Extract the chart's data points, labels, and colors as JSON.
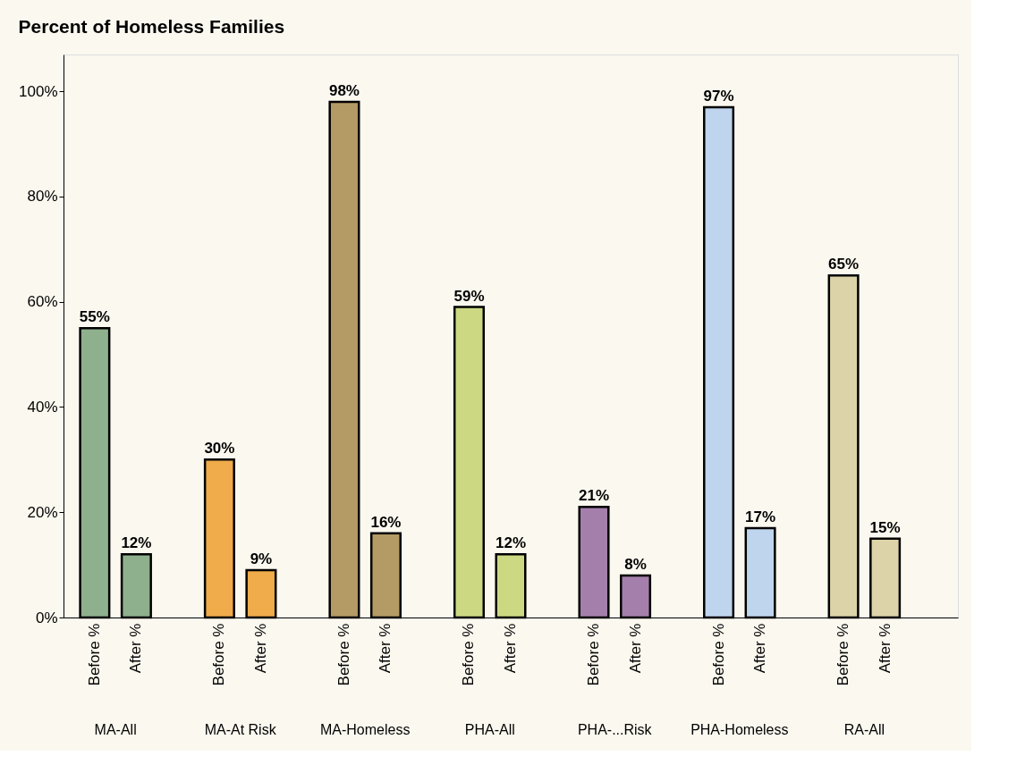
{
  "chart_data": {
    "type": "bar",
    "title": "Percent of Homeless Families",
    "categories": [
      "Before %",
      "After %",
      "Before %",
      "After %",
      "Before %",
      "After %",
      "Before %",
      "After %",
      "Before %",
      "After %",
      "Before %",
      "After %",
      "Before %",
      "After %"
    ],
    "values": [
      55,
      12,
      30,
      9,
      98,
      16,
      59,
      12,
      21,
      8,
      97,
      17,
      65,
      15
    ],
    "colors": [
      "#8fb08c",
      "#8fb08c",
      "#f0ab4a",
      "#f0ab4a",
      "#b49a64",
      "#b49a64",
      "#ccd982",
      "#ccd982",
      "#a57fab",
      "#a57fab",
      "#bfd5ee",
      "#bfd5ee",
      "#dcd3a9",
      "#dcd3a9"
    ],
    "value_labels": [
      "55%",
      "12%",
      "30%",
      "9%",
      "98%",
      "16%",
      "59%",
      "12%",
      "21%",
      "8%",
      "97%",
      "17%",
      "65%",
      "15%"
    ],
    "annotations": [
      "MA-All",
      "MA-At Risk",
      "MA-Homeless",
      "PHA-All",
      "PHA-...Risk",
      "PHA-Homeless",
      "RA-All"
    ],
    "ylim": [
      0,
      107
    ],
    "yticks": [
      {
        "value": 0,
        "label": "0%"
      },
      {
        "value": 20,
        "label": "20%"
      },
      {
        "value": 40,
        "label": "40%"
      },
      {
        "value": 60,
        "label": "60%"
      },
      {
        "value": 80,
        "label": "80%"
      },
      {
        "value": 100,
        "label": "100%"
      }
    ],
    "grid": false,
    "legend": false
  }
}
